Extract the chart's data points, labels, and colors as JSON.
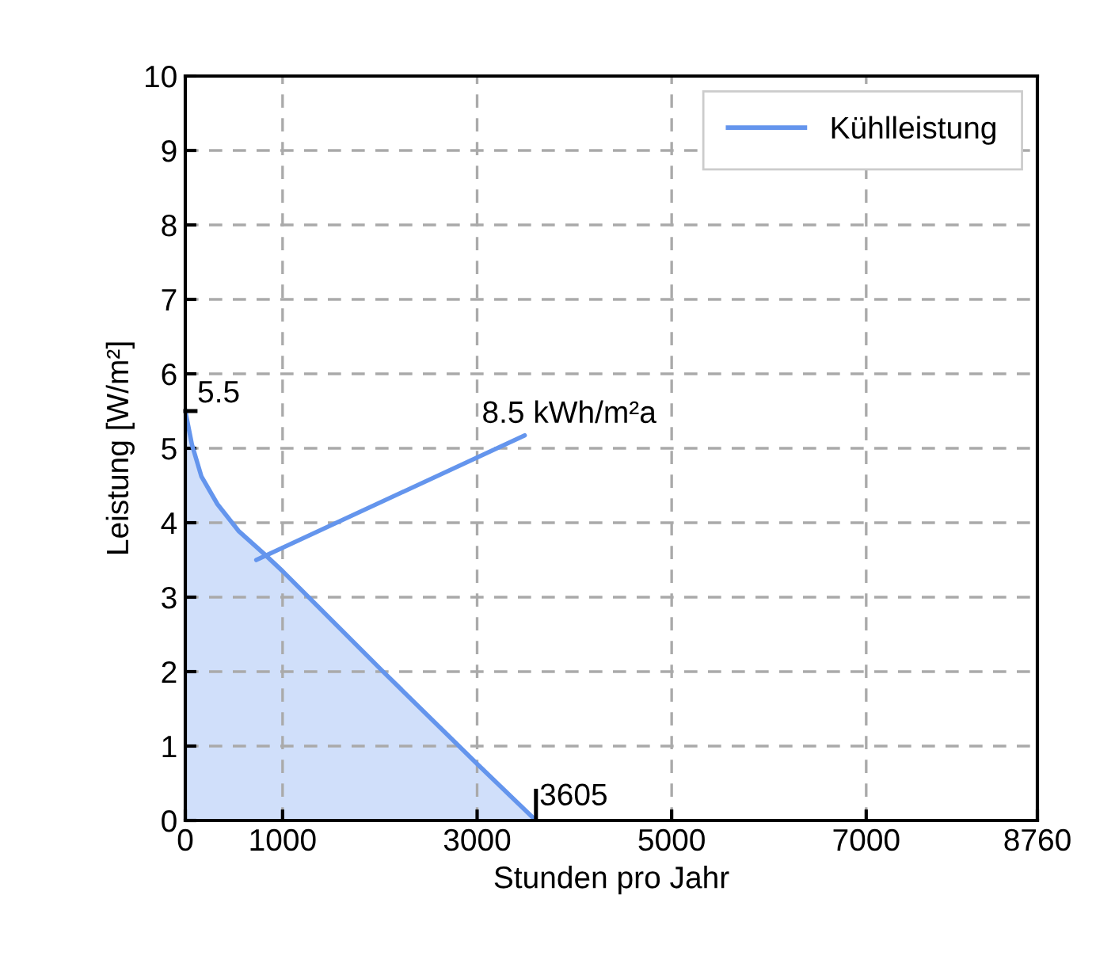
{
  "chart_data": {
    "type": "area",
    "xlabel": "Stunden pro Jahr",
    "ylabel": "Leistung [W/m²]",
    "x": [
      0,
      68,
      166,
      330,
      547,
      820,
      1000,
      2018,
      3000,
      3605
    ],
    "series": [
      {
        "name": "Kühlleistung",
        "color": "#6495ed",
        "values": [
          5.5,
          5.05,
          4.62,
          4.25,
          3.89,
          3.57,
          3.35,
          2.02,
          0.76,
          0
        ]
      }
    ],
    "xlim": [
      0,
      8760
    ],
    "xticks": [
      0,
      1000,
      3000,
      5000,
      7000,
      8760
    ],
    "ylim": [
      0,
      10
    ],
    "yticks": [
      0,
      1,
      2,
      3,
      4,
      5,
      6,
      7,
      8,
      9,
      10
    ],
    "grid": true,
    "legend": "top right",
    "annotations": [
      {
        "text": "5.5",
        "x": 0,
        "y": 5.5
      },
      {
        "text": "3605",
        "x": 3605,
        "y": 0
      },
      {
        "text": "8.5 kWh/m²a",
        "x": 730,
        "y": 3.5
      }
    ]
  }
}
